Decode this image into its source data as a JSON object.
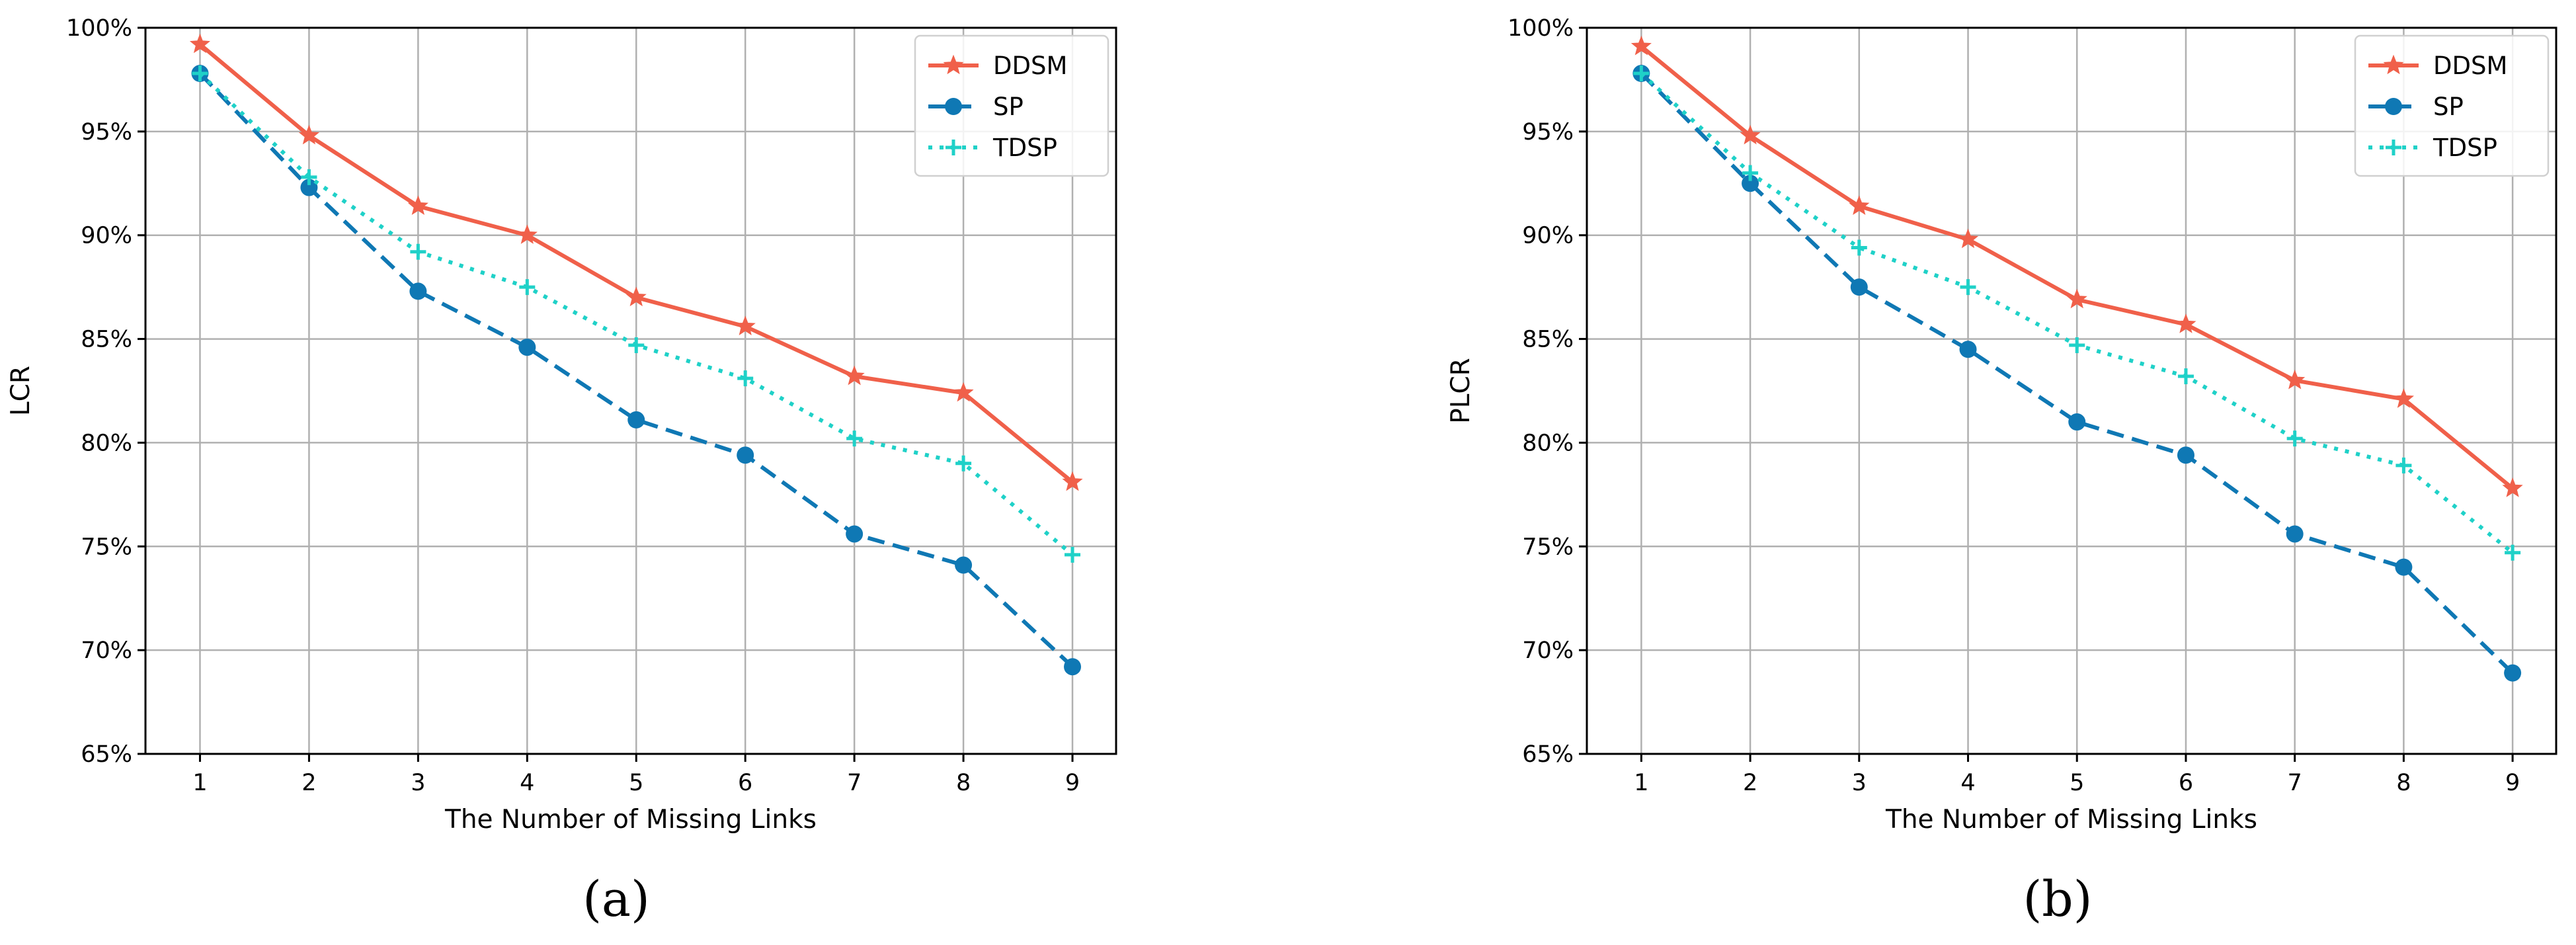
{
  "figure": {
    "colors": {
      "DDSM": "#f0604a",
      "SP": "#0f78b4",
      "TDSP": "#1fd1c8",
      "grid": "#b0b0b0",
      "axis": "#000000"
    },
    "icons": {
      "DDSM": "star-marker-icon",
      "SP": "circle-marker-icon",
      "TDSP": "plus-marker-icon"
    }
  },
  "chart_data": [
    {
      "type": "line",
      "caption": "(a)",
      "xlabel": "The Number of Missing Links",
      "ylabel": "LCR",
      "title": "",
      "grid": true,
      "legend_position": "top-right",
      "xlim": [
        0.5,
        9.4
      ],
      "ylim": [
        65,
        100
      ],
      "x": [
        1,
        2,
        3,
        4,
        5,
        6,
        7,
        8,
        9
      ],
      "x_ticks": [
        "1",
        "2",
        "3",
        "4",
        "5",
        "6",
        "7",
        "8",
        "9"
      ],
      "y_ticks": [
        {
          "value": 100,
          "label": "100%"
        },
        {
          "value": 95,
          "label": "95%"
        },
        {
          "value": 90,
          "label": "90%"
        },
        {
          "value": 85,
          "label": "85%"
        },
        {
          "value": 80,
          "label": "80%"
        },
        {
          "value": 75,
          "label": "75%"
        },
        {
          "value": 70,
          "label": "70%"
        },
        {
          "value": 65,
          "label": "65%"
        }
      ],
      "series": [
        {
          "name": "DDSM",
          "style": "solid",
          "marker": "star",
          "values": [
            99.2,
            94.8,
            91.4,
            90.0,
            87.0,
            85.6,
            83.2,
            82.4,
            78.1
          ]
        },
        {
          "name": "SP",
          "style": "dashed",
          "marker": "circle",
          "values": [
            97.8,
            92.3,
            87.3,
            84.6,
            81.1,
            79.4,
            75.6,
            74.1,
            69.2
          ]
        },
        {
          "name": "TDSP",
          "style": "dotted",
          "marker": "plus",
          "values": [
            97.8,
            92.8,
            89.2,
            87.5,
            84.7,
            83.1,
            80.2,
            79.0,
            74.6
          ]
        }
      ]
    },
    {
      "type": "line",
      "caption": "(b)",
      "xlabel": "The Number of Missing Links",
      "ylabel": "PLCR",
      "title": "",
      "grid": true,
      "legend_position": "top-right",
      "xlim": [
        0.5,
        9.4
      ],
      "ylim": [
        65,
        100
      ],
      "x": [
        1,
        2,
        3,
        4,
        5,
        6,
        7,
        8,
        9
      ],
      "x_ticks": [
        "1",
        "2",
        "3",
        "4",
        "5",
        "6",
        "7",
        "8",
        "9"
      ],
      "y_ticks": [
        {
          "value": 100,
          "label": "100%"
        },
        {
          "value": 95,
          "label": "95%"
        },
        {
          "value": 90,
          "label": "90%"
        },
        {
          "value": 85,
          "label": "85%"
        },
        {
          "value": 80,
          "label": "80%"
        },
        {
          "value": 75,
          "label": "75%"
        },
        {
          "value": 70,
          "label": "70%"
        },
        {
          "value": 65,
          "label": "65%"
        }
      ],
      "series": [
        {
          "name": "DDSM",
          "style": "solid",
          "marker": "star",
          "values": [
            99.1,
            94.8,
            91.4,
            89.8,
            86.9,
            85.7,
            83.0,
            82.1,
            77.8
          ]
        },
        {
          "name": "SP",
          "style": "dashed",
          "marker": "circle",
          "values": [
            97.8,
            92.5,
            87.5,
            84.5,
            81.0,
            79.4,
            75.6,
            74.0,
            68.9
          ]
        },
        {
          "name": "TDSP",
          "style": "dotted",
          "marker": "plus",
          "values": [
            97.8,
            93.0,
            89.4,
            87.5,
            84.7,
            83.2,
            80.2,
            78.9,
            74.7
          ]
        }
      ]
    }
  ]
}
